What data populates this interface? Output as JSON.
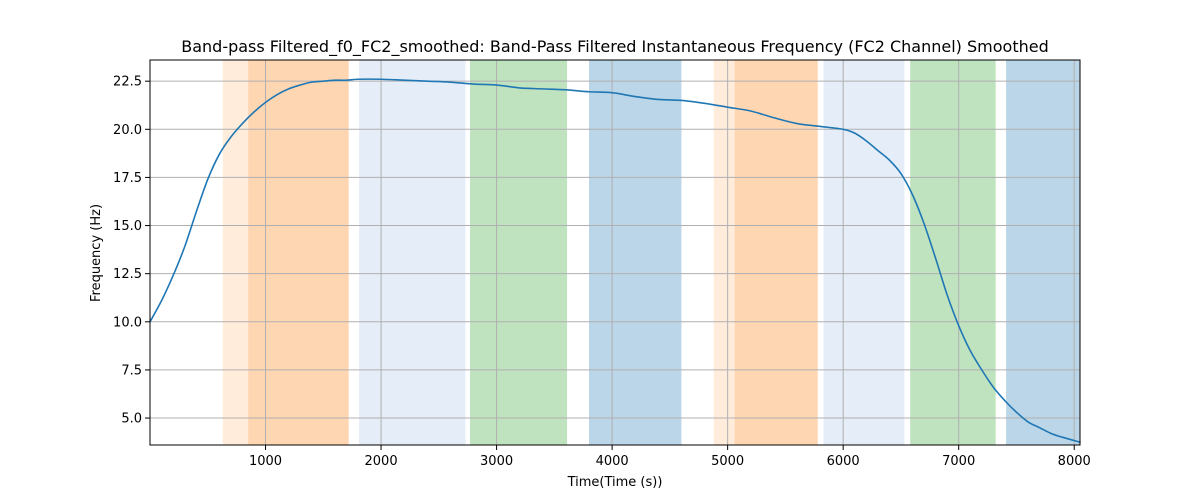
{
  "chart_data": {
    "type": "line",
    "title": "Band-pass Filtered_f0_FC2_smoothed: Band-Pass Filtered Instantaneous Frequency (FC2 Channel) Smoothed",
    "xlabel": "Time(Time (s))",
    "ylabel": "Frequency (Hz)",
    "xlim": [
      0,
      8050
    ],
    "ylim": [
      3.6,
      23.6
    ],
    "xticks": [
      1000,
      2000,
      3000,
      4000,
      5000,
      6000,
      7000,
      8000
    ],
    "yticks": [
      5.0,
      7.5,
      10.0,
      12.5,
      15.0,
      17.5,
      20.0,
      22.5
    ],
    "grid": true,
    "line_color": "#1f77b4",
    "series": [
      {
        "x": [
          0,
          100,
          200,
          300,
          400,
          500,
          600,
          700,
          800,
          900,
          1000,
          1100,
          1200,
          1300,
          1400,
          1500,
          1600,
          1700,
          1800,
          2000,
          2200,
          2400,
          2600,
          2800,
          3000,
          3200,
          3400,
          3600,
          3800,
          4000,
          4200,
          4400,
          4600,
          4800,
          5000,
          5200,
          5400,
          5600,
          5800,
          6000,
          6100,
          6200,
          6300,
          6400,
          6500,
          6600,
          6700,
          6800,
          6900,
          7000,
          7100,
          7200,
          7300,
          7400,
          7500,
          7600,
          7700,
          7800,
          7900,
          8050
        ],
        "y": [
          10.0,
          11.1,
          12.4,
          13.9,
          15.7,
          17.4,
          18.7,
          19.6,
          20.3,
          20.9,
          21.4,
          21.8,
          22.1,
          22.3,
          22.45,
          22.5,
          22.55,
          22.55,
          22.6,
          22.6,
          22.55,
          22.5,
          22.45,
          22.35,
          22.3,
          22.15,
          22.1,
          22.05,
          21.95,
          21.9,
          21.7,
          21.55,
          21.5,
          21.35,
          21.15,
          20.95,
          20.6,
          20.3,
          20.15,
          20.0,
          19.8,
          19.4,
          18.9,
          18.4,
          17.7,
          16.6,
          15.1,
          13.3,
          11.4,
          9.8,
          8.5,
          7.5,
          6.6,
          5.9,
          5.3,
          4.8,
          4.5,
          4.2,
          4.0,
          3.75
        ]
      }
    ],
    "shaded_regions": [
      {
        "x0": 630,
        "x1": 850,
        "color": "#ff7f0e",
        "alpha": 0.15
      },
      {
        "x0": 850,
        "x1": 1720,
        "color": "#ff7f0e",
        "alpha": 0.32
      },
      {
        "x0": 1810,
        "x1": 2730,
        "color": "#aec7e8",
        "alpha": 0.32
      },
      {
        "x0": 2770,
        "x1": 3610,
        "color": "#2ca02c",
        "alpha": 0.3
      },
      {
        "x0": 3800,
        "x1": 4600,
        "color": "#1f77b4",
        "alpha": 0.3
      },
      {
        "x0": 4880,
        "x1": 5060,
        "color": "#ff7f0e",
        "alpha": 0.15
      },
      {
        "x0": 5060,
        "x1": 5780,
        "color": "#ff7f0e",
        "alpha": 0.32
      },
      {
        "x0": 5830,
        "x1": 6530,
        "color": "#aec7e8",
        "alpha": 0.32
      },
      {
        "x0": 6580,
        "x1": 7320,
        "color": "#2ca02c",
        "alpha": 0.3
      },
      {
        "x0": 7410,
        "x1": 8050,
        "color": "#1f77b4",
        "alpha": 0.3
      }
    ]
  }
}
